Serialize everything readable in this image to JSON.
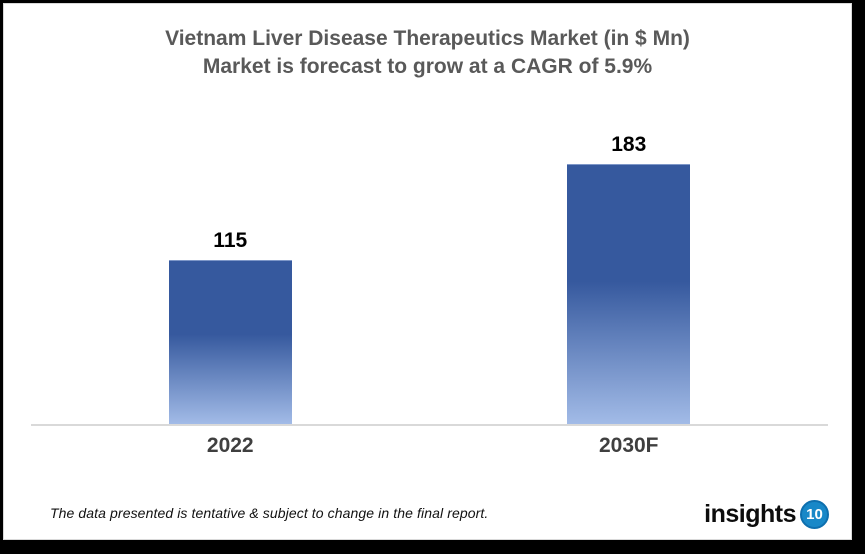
{
  "chart_data": {
    "type": "bar",
    "title_line1": "Vietnam Liver Disease Therapeutics Market (in $ Mn)",
    "title_line2": "Market is forecast to grow at a CAGR of 5.9%",
    "categories": [
      "2022",
      "2030F"
    ],
    "values": [
      115,
      183
    ],
    "ylim": [
      0,
      213
    ],
    "grid": false,
    "legend": false,
    "data_labels": true,
    "y_axis_labels": false,
    "bar_gradient_top": "#36599E",
    "bar_gradient_bottom": "#A2BBE7",
    "axis_line_color": "#D9D9D9",
    "title_color": "#595959",
    "value_label_color": "#000000",
    "category_label_color": "#3F3F3F"
  },
  "footer": {
    "disclaimer": "The data presented is tentative & subject to change in the final report.",
    "logo_text": "insights",
    "logo_badge": "10",
    "logo_badge_color": "#1888C8"
  }
}
